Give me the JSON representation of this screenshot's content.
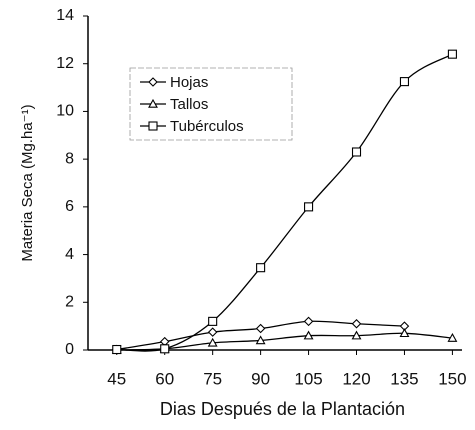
{
  "chart_data": {
    "type": "line",
    "xlabel": "Dias Después de la Plantación",
    "ylabel": "Materia Seca (Mg.ha⁻¹)",
    "x": [
      45,
      60,
      75,
      90,
      105,
      120,
      135,
      150
    ],
    "series": [
      {
        "name": "Hojas",
        "color": "#000000",
        "marker": "diamond",
        "values": [
          0.02,
          0.35,
          0.75,
          0.9,
          1.2,
          1.1,
          1.0,
          null
        ]
      },
      {
        "name": "Tallos",
        "color": "#000000",
        "marker": "triangle",
        "values": [
          0.0,
          0.05,
          0.3,
          0.4,
          0.6,
          0.6,
          0.7,
          0.5
        ]
      },
      {
        "name": "Tubérculos",
        "color": "#000000",
        "marker": "square",
        "values": [
          0.02,
          0.05,
          1.2,
          3.45,
          6.0,
          8.3,
          11.25,
          12.4
        ]
      }
    ],
    "xlim": [
      36,
      153
    ],
    "xticks": [
      45,
      60,
      75,
      90,
      105,
      120,
      135,
      150
    ],
    "ylim": [
      0,
      14
    ],
    "yticks": [
      0,
      2,
      4,
      6,
      8,
      10,
      12,
      14
    ],
    "legend": "upper left"
  }
}
